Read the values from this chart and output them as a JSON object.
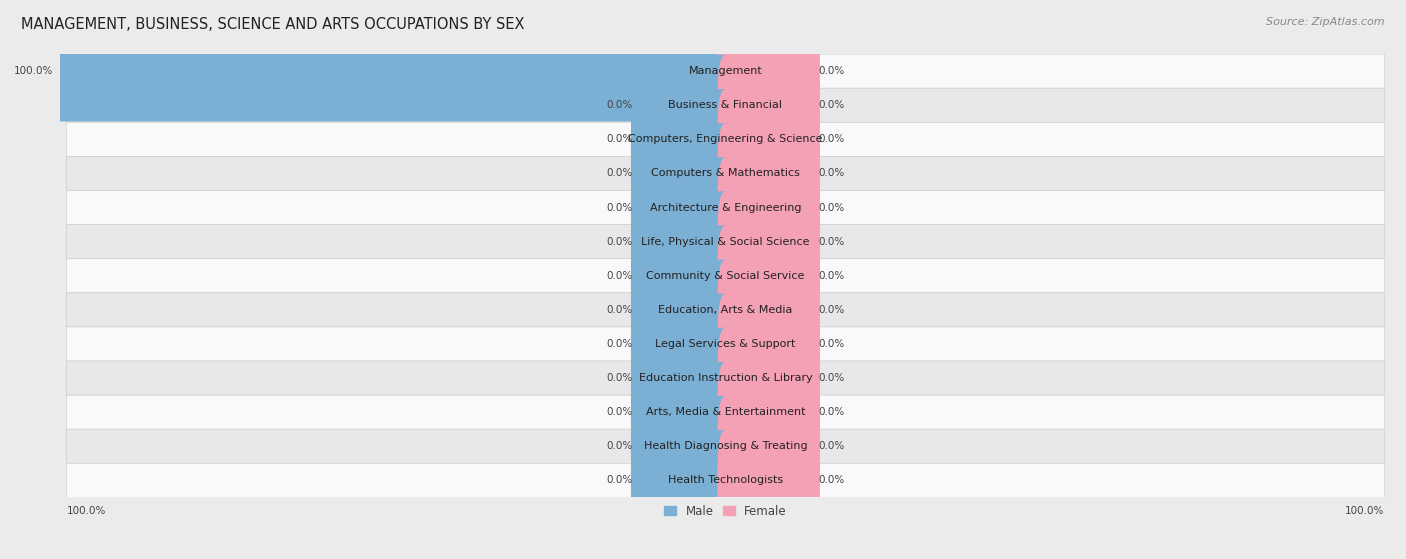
{
  "title": "MANAGEMENT, BUSINESS, SCIENCE AND ARTS OCCUPATIONS BY SEX",
  "source": "Source: ZipAtlas.com",
  "categories": [
    "Management",
    "Business & Financial",
    "Computers, Engineering & Science",
    "Computers & Mathematics",
    "Architecture & Engineering",
    "Life, Physical & Social Science",
    "Community & Social Service",
    "Education, Arts & Media",
    "Legal Services & Support",
    "Education Instruction & Library",
    "Arts, Media & Entertainment",
    "Health Diagnosing & Treating",
    "Health Technologists"
  ],
  "male_values": [
    100.0,
    0.0,
    0.0,
    0.0,
    0.0,
    0.0,
    0.0,
    0.0,
    0.0,
    0.0,
    0.0,
    0.0,
    0.0
  ],
  "female_values": [
    0.0,
    0.0,
    0.0,
    0.0,
    0.0,
    0.0,
    0.0,
    0.0,
    0.0,
    0.0,
    0.0,
    0.0,
    0.0
  ],
  "male_color": "#7bafd4",
  "female_color": "#f4a0b5",
  "male_label": "Male",
  "female_label": "Female",
  "bg_color": "#ebebeb",
  "row_bg_light": "#f9f9f9",
  "row_bg_dark": "#e8e8e8",
  "xlim": 100,
  "min_bar_pct": 13,
  "title_fontsize": 10.5,
  "source_fontsize": 8,
  "category_fontsize": 8,
  "value_label_fontsize": 7.5,
  "legend_fontsize": 8.5
}
